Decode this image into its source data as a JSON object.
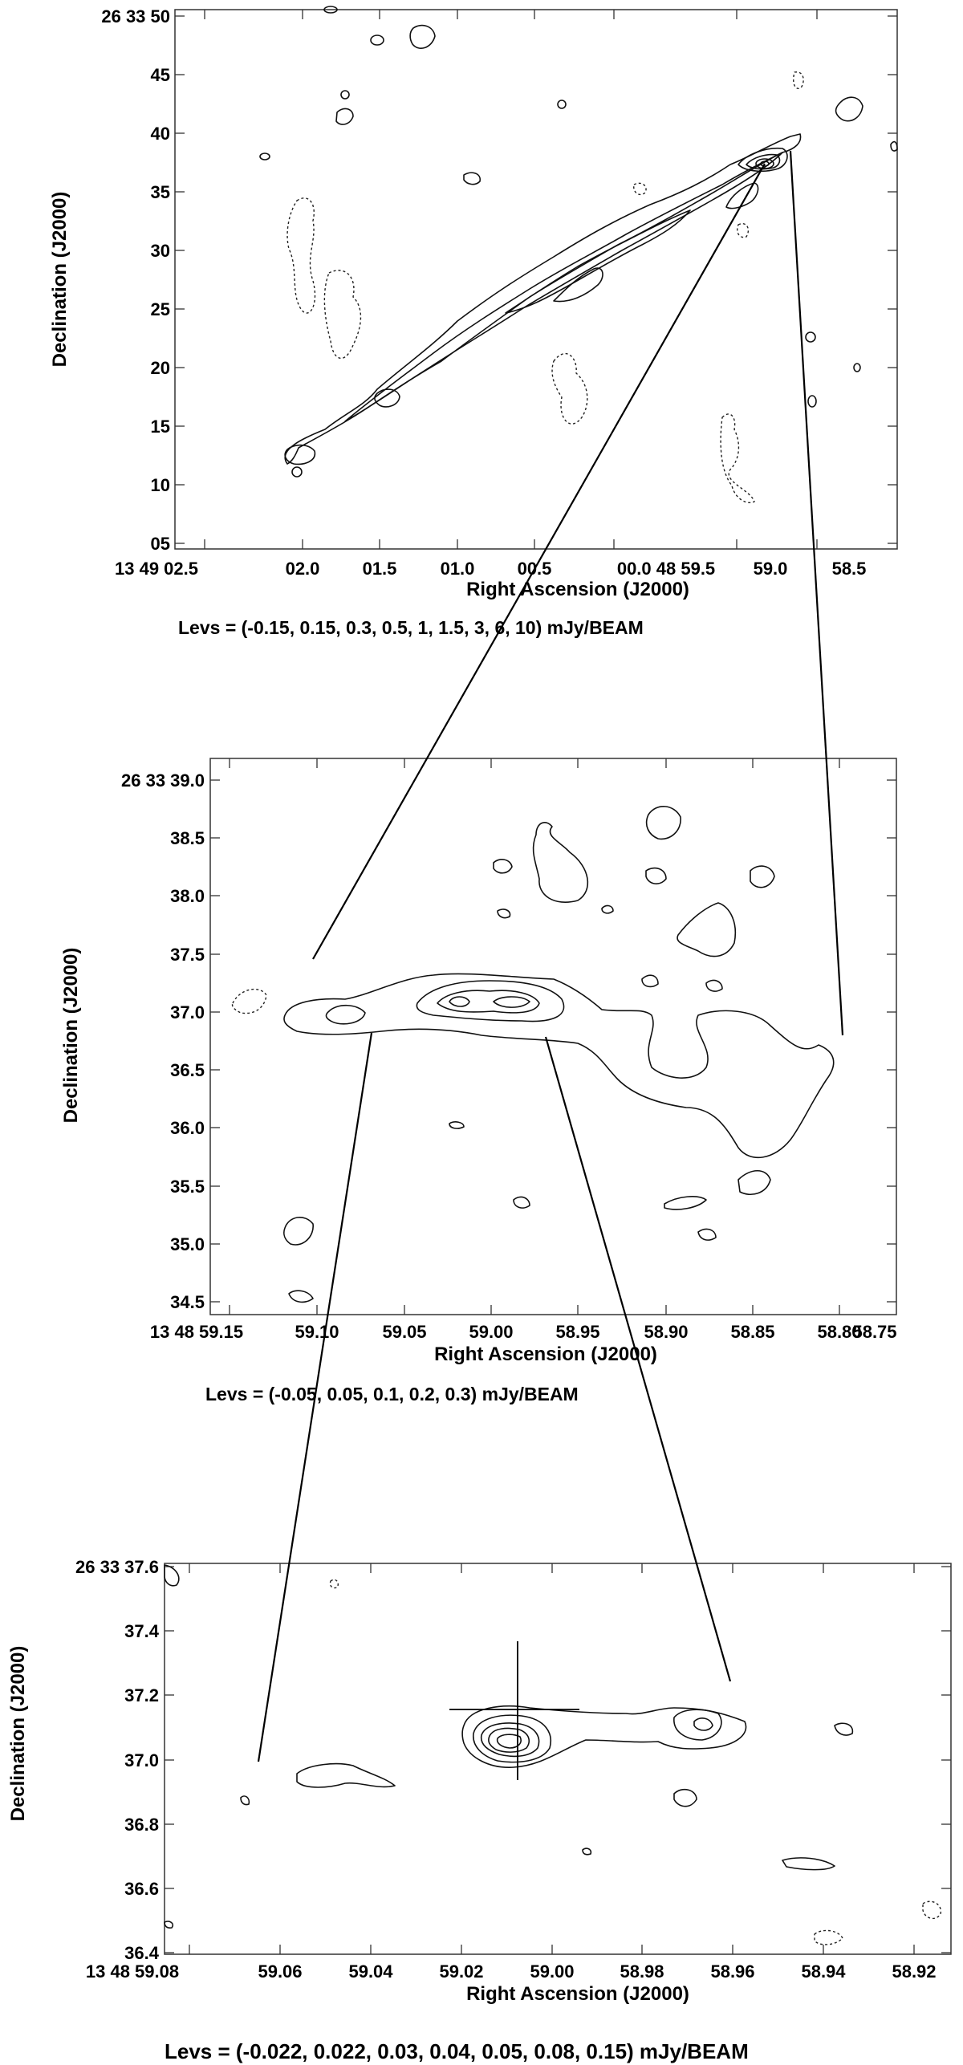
{
  "chart_data": [
    {
      "type": "contour",
      "panel": "top",
      "xlabel": "Right Ascension (J2000)",
      "ylabel": "Declination (J2000)",
      "x_tick_labels": [
        "13 49 02.5",
        "02.0",
        "01.5",
        "01.0",
        "00.5",
        "00.0 48 59.5",
        "59.0",
        "58.5"
      ],
      "y_tick_labels": [
        "26 33 50",
        "45",
        "40",
        "35",
        "30",
        "25",
        "20",
        "15",
        "10",
        "05"
      ],
      "levels_text": "Levs = (-0.15, 0.15, 0.3, 0.5, 1, 1.5, 3, 6, 10) mJy/BEAM",
      "levels": [
        -0.15,
        0.15,
        0.3,
        0.5,
        1,
        1.5,
        3,
        6,
        10
      ],
      "units": "mJy/BEAM"
    },
    {
      "type": "contour",
      "panel": "middle",
      "xlabel": "Right Ascension (J2000)",
      "ylabel": "Declination (J2000)",
      "x_tick_labels": [
        "13 48 59.15",
        "59.10",
        "59.05",
        "59.00",
        "58.95",
        "58.90",
        "58.85",
        "58.80",
        "58.75"
      ],
      "y_tick_labels": [
        "26 33 39.0",
        "38.5",
        "38.0",
        "37.5",
        "37.0",
        "36.5",
        "36.0",
        "35.5",
        "35.0",
        "34.5"
      ],
      "levels_text": "Levs = (-0.05, 0.05, 0.1, 0.2, 0.3) mJy/BEAM",
      "levels": [
        -0.05,
        0.05,
        0.1,
        0.2,
        0.3
      ],
      "units": "mJy/BEAM"
    },
    {
      "type": "contour",
      "panel": "bottom",
      "xlabel": "Right Ascension (J2000)",
      "ylabel": "Declination (J2000)",
      "x_tick_labels": [
        "13 48 59.08",
        "59.06",
        "59.04",
        "59.02",
        "59.00",
        "58.98",
        "58.96",
        "58.94",
        "58.92"
      ],
      "y_tick_labels": [
        "26 33 37.6",
        "37.4",
        "37.2",
        "37.0",
        "36.8",
        "36.6",
        "36.4"
      ],
      "levels_text": "Levs = (-0.022, 0.022, 0.03, 0.04, 0.05, 0.08, 0.15) mJy/BEAM",
      "levels": [
        -0.022,
        0.022,
        0.03,
        0.04,
        0.05,
        0.08,
        0.15
      ],
      "units": "mJy/BEAM"
    }
  ]
}
